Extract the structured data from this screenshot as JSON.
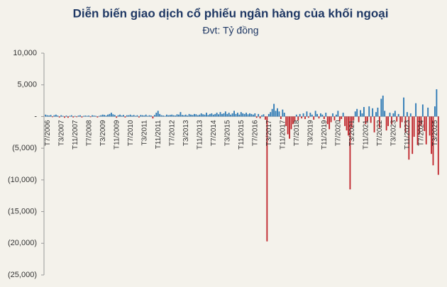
{
  "chart_data": {
    "type": "bar",
    "title": "Diễn biến giao dịch cổ phiếu ngân hàng của khối ngoại",
    "subtitle": "Đvt: Tỷ đồng",
    "color_positive": "#2e7ab5",
    "color_negative": "#c0262c",
    "ylim": [
      -25000,
      10000
    ],
    "yticks": [
      {
        "value": 10000,
        "label": "10,000"
      },
      {
        "value": 5000,
        "label": "5,000"
      },
      {
        "value": 0,
        "label": "-"
      },
      {
        "value": -5000,
        "label": "(5,000)"
      },
      {
        "value": -10000,
        "label": "(10,000)"
      },
      {
        "value": -15000,
        "label": "(15,000)"
      },
      {
        "value": -20000,
        "label": "(20,000)"
      },
      {
        "value": -25000,
        "label": "(25,000)"
      }
    ],
    "categories": [
      "T7/2006",
      null,
      null,
      null,
      null,
      null,
      null,
      null,
      "T3/2007",
      null,
      null,
      null,
      null,
      null,
      null,
      null,
      "T11/2007",
      null,
      null,
      null,
      null,
      null,
      null,
      null,
      "T7/2008",
      null,
      null,
      null,
      null,
      null,
      null,
      null,
      "T3/2009",
      null,
      null,
      null,
      null,
      null,
      null,
      null,
      "T11/2009",
      null,
      null,
      null,
      null,
      null,
      null,
      null,
      "T7/2010",
      null,
      null,
      null,
      null,
      null,
      null,
      null,
      "T3/2011",
      null,
      null,
      null,
      null,
      null,
      null,
      null,
      "T11/2011",
      null,
      null,
      null,
      null,
      null,
      null,
      null,
      "T7/2012",
      null,
      null,
      null,
      null,
      null,
      null,
      null,
      "T3/2013",
      null,
      null,
      null,
      null,
      null,
      null,
      null,
      "T11/2013",
      null,
      null,
      null,
      null,
      null,
      null,
      null,
      "T7/2014",
      null,
      null,
      null,
      null,
      null,
      null,
      null,
      "T3/2015",
      null,
      null,
      null,
      null,
      null,
      null,
      null,
      "T11/2015",
      null,
      null,
      null,
      null,
      null,
      null,
      null,
      "T7/2016",
      null,
      null,
      null,
      null,
      null,
      null,
      null,
      "T3/2017",
      null,
      null,
      null,
      null,
      null,
      null,
      null,
      "T11/2017",
      null,
      null,
      null,
      null,
      null,
      null,
      null,
      "T7/2018",
      null,
      null,
      null,
      null,
      null,
      null,
      null,
      "T3/2019",
      null,
      null,
      null,
      null,
      null,
      null,
      null,
      "T11/2019",
      null,
      null,
      null,
      null,
      null,
      null,
      null,
      "T7/2020",
      null,
      null,
      null,
      null,
      null,
      null,
      null,
      "T3/2021",
      null,
      null,
      null,
      null,
      null,
      null,
      null,
      "T11/2021",
      null,
      null,
      null,
      null,
      null,
      null,
      null,
      "T7/2022",
      null,
      null,
      null,
      null,
      null,
      null,
      null,
      "T3/2023",
      null,
      null,
      null,
      null,
      null,
      null,
      null,
      "T11/2023",
      null,
      null,
      null,
      null,
      null,
      null,
      null,
      "T7/2024",
      null,
      null,
      null,
      null,
      null,
      null,
      null,
      "T3/2025",
      null,
      null,
      null
    ],
    "values": [
      300,
      200,
      150,
      250,
      -100,
      200,
      300,
      150,
      -150,
      200,
      100,
      -200,
      150,
      -200,
      100,
      200,
      -150,
      100,
      -100,
      150,
      200,
      -150,
      100,
      150,
      100,
      150,
      -100,
      200,
      150,
      100,
      -150,
      100,
      200,
      300,
      250,
      150,
      300,
      400,
      600,
      350,
      250,
      -200,
      200,
      300,
      150,
      250,
      -150,
      200,
      200,
      300,
      150,
      250,
      100,
      200,
      -150,
      250,
      200,
      150,
      300,
      100,
      200,
      150,
      -300,
      250,
      600,
      900,
      400,
      200,
      150,
      100,
      300,
      200,
      250,
      300,
      200,
      150,
      350,
      300,
      700,
      250,
      200,
      300,
      150,
      400,
      300,
      250,
      400,
      350,
      200,
      300,
      500,
      350,
      300,
      600,
      250,
      400,
      500,
      300,
      400,
      600,
      350,
      700,
      400,
      500,
      800,
      400,
      600,
      300,
      500,
      900,
      400,
      600,
      300,
      700,
      500,
      400,
      600,
      350,
      500,
      400,
      300,
      500,
      -200,
      400,
      -300,
      200,
      350,
      -500,
      -19700,
      400,
      700,
      1200,
      2000,
      900,
      1300,
      800,
      -400,
      1100,
      600,
      -1500,
      -2800,
      -3500,
      -2000,
      -1200,
      -800,
      300,
      -600,
      400,
      -300,
      500,
      -400,
      800,
      -200,
      600,
      300,
      -500,
      900,
      400,
      -300,
      500,
      300,
      -400,
      600,
      -1200,
      -2000,
      -900,
      500,
      -600,
      300,
      900,
      -700,
      -400,
      600,
      -1500,
      -2200,
      -3000,
      -11500,
      -1800,
      -600,
      800,
      1200,
      -900,
      1000,
      500,
      1500,
      -1200,
      -800,
      1600,
      -1000,
      1300,
      -2500,
      700,
      1400,
      -1800,
      2800,
      3300,
      900,
      -2200,
      -1500,
      600,
      -1200,
      500,
      900,
      -800,
      400,
      -1800,
      -900,
      3000,
      -2500,
      700,
      -6800,
      500,
      -5900,
      -3200,
      2100,
      -4500,
      -2800,
      -1500,
      1900,
      -2300,
      -4400,
      1400,
      -3000,
      -5900,
      -7700,
      1600,
      4300,
      -9200
    ]
  }
}
